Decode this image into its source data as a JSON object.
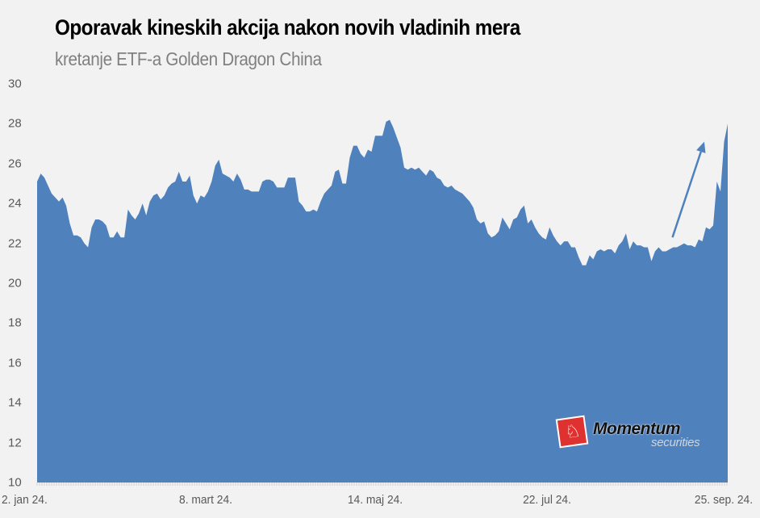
{
  "header": {
    "title": "Oporavak kineskih akcija nakon novih vladinih mera",
    "subtitle": "kretanje ETF-a Golden Dragon China"
  },
  "logo": {
    "name": "Momentum",
    "tagline": "securities"
  },
  "colors": {
    "area_fill": "#4f81bd",
    "background": "#f2f2f2",
    "axis_text": "#595959",
    "subtitle": "#808080",
    "logo_red": "#e03131"
  },
  "chart_data": {
    "type": "area",
    "title": "Oporavak kineskih akcija nakon novih vladinih mera",
    "subtitle": "kretanje ETF-a Golden Dragon China",
    "xlabel": "",
    "ylabel": "",
    "ylim": [
      10,
      30
    ],
    "yticks": [
      10,
      12,
      14,
      16,
      18,
      20,
      22,
      24,
      26,
      28,
      30
    ],
    "xtick_labels": [
      "2. jan 24.",
      "8. mart 24.",
      "14. maj 24.",
      "22. jul 24.",
      "25. sep. 24."
    ],
    "grid": false,
    "legend": null,
    "annotations": [
      {
        "type": "arrow",
        "from_value_pos": [
          0.92,
          22.3
        ],
        "to_value_pos": [
          0.966,
          27.1
        ],
        "color": "#4f81bd",
        "meaning": "rally"
      }
    ],
    "series": [
      {
        "name": "Golden Dragon China ETF",
        "values": [
          25.1,
          25.5,
          25.3,
          24.9,
          24.5,
          24.3,
          24.1,
          24.3,
          23.9,
          23.0,
          22.4,
          22.4,
          22.3,
          22.0,
          21.8,
          22.8,
          23.2,
          23.2,
          23.1,
          22.9,
          22.3,
          22.3,
          22.6,
          22.3,
          22.3,
          23.7,
          23.4,
          23.2,
          23.5,
          24.0,
          23.4,
          24.1,
          24.4,
          24.5,
          24.2,
          24.4,
          24.8,
          25.0,
          25.1,
          25.6,
          25.1,
          25.1,
          25.4,
          24.4,
          24.0,
          24.4,
          24.3,
          24.6,
          25.1,
          25.9,
          26.2,
          25.5,
          25.4,
          25.3,
          25.1,
          25.5,
          25.2,
          24.7,
          24.7,
          24.6,
          24.6,
          24.6,
          25.1,
          25.2,
          25.2,
          25.1,
          24.8,
          24.8,
          24.8,
          25.3,
          25.3,
          25.3,
          24.1,
          23.9,
          23.6,
          23.6,
          23.7,
          23.6,
          24.1,
          24.5,
          24.7,
          24.9,
          25.6,
          25.7,
          25.0,
          25.0,
          26.3,
          26.9,
          26.9,
          26.5,
          26.3,
          26.7,
          26.6,
          27.4,
          27.4,
          27.4,
          28.1,
          28.2,
          27.8,
          27.3,
          26.8,
          25.8,
          25.7,
          25.8,
          25.7,
          25.8,
          25.6,
          25.4,
          25.7,
          25.6,
          25.3,
          25.2,
          24.9,
          24.8,
          24.9,
          24.7,
          24.6,
          24.5,
          24.3,
          24.1,
          23.8,
          23.2,
          23.0,
          23.1,
          22.5,
          22.3,
          22.4,
          22.6,
          23.3,
          23.0,
          22.7,
          23.2,
          23.3,
          23.7,
          23.9,
          23.0,
          23.2,
          22.8,
          22.5,
          22.3,
          22.2,
          22.8,
          22.4,
          22.1,
          21.9,
          22.1,
          22.1,
          21.8,
          21.8,
          21.3,
          20.9,
          20.9,
          21.4,
          21.2,
          21.6,
          21.7,
          21.6,
          21.7,
          21.7,
          21.5,
          21.9,
          22.1,
          22.5,
          21.7,
          22.1,
          21.9,
          21.9,
          21.8,
          21.8,
          21.1,
          21.6,
          21.8,
          21.6,
          21.6,
          21.7,
          21.8,
          21.8,
          21.9,
          22.0,
          21.9,
          21.9,
          21.8,
          22.2,
          22.1,
          22.8,
          22.7,
          22.9,
          25.1,
          24.6,
          27.1,
          28.0
        ]
      }
    ],
    "x_start_label": "2. jan 24.",
    "x_end_label": "25. sep. 24."
  }
}
